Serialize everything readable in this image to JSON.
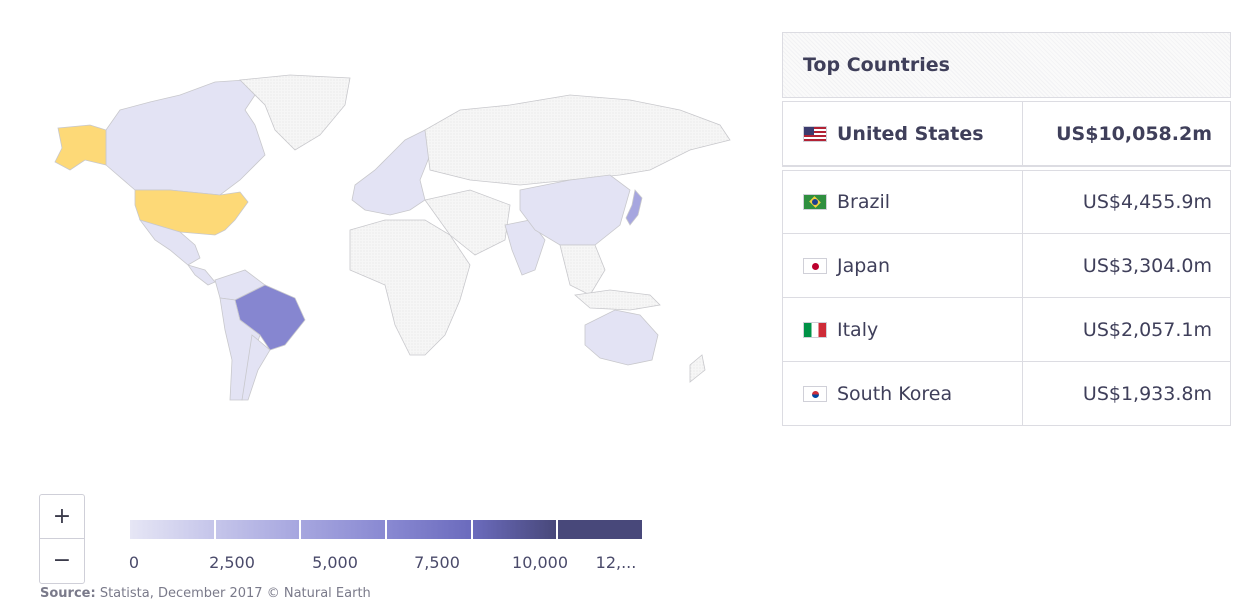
{
  "zoom": {
    "in_label": "+",
    "out_label": "−"
  },
  "legend": {
    "ticks": [
      "0",
      "2,500",
      "5,000",
      "7,500",
      "10,000",
      "12,..."
    ],
    "colors": [
      "#e6e6f5",
      "#c5c5ea",
      "#a6a6df",
      "#8989d2",
      "#6b6bbd",
      "#48487a"
    ]
  },
  "source": {
    "label": "Source:",
    "text": "Statista, December 2017 © Natural Earth"
  },
  "table": {
    "title": "Top Countries",
    "rows": [
      {
        "flag": "us-flag-icon",
        "name": "United States",
        "value": "US$10,058.2m"
      },
      {
        "flag": "brazil-flag-icon",
        "name": "Brazil",
        "value": "US$4,455.9m"
      },
      {
        "flag": "japan-flag-icon",
        "name": "Japan",
        "value": "US$3,304.0m"
      },
      {
        "flag": "italy-flag-icon",
        "name": "Italy",
        "value": "US$2,057.1m"
      },
      {
        "flag": "south-korea-flag-icon",
        "name": "South Korea",
        "value": "US$1,933.8m"
      }
    ]
  },
  "map_colors": {
    "highlight": "#fdd977",
    "brazil": "#8686d0",
    "light": "#e3e3f4",
    "none": "#f4f4f4",
    "border": "#c8c8cc"
  }
}
